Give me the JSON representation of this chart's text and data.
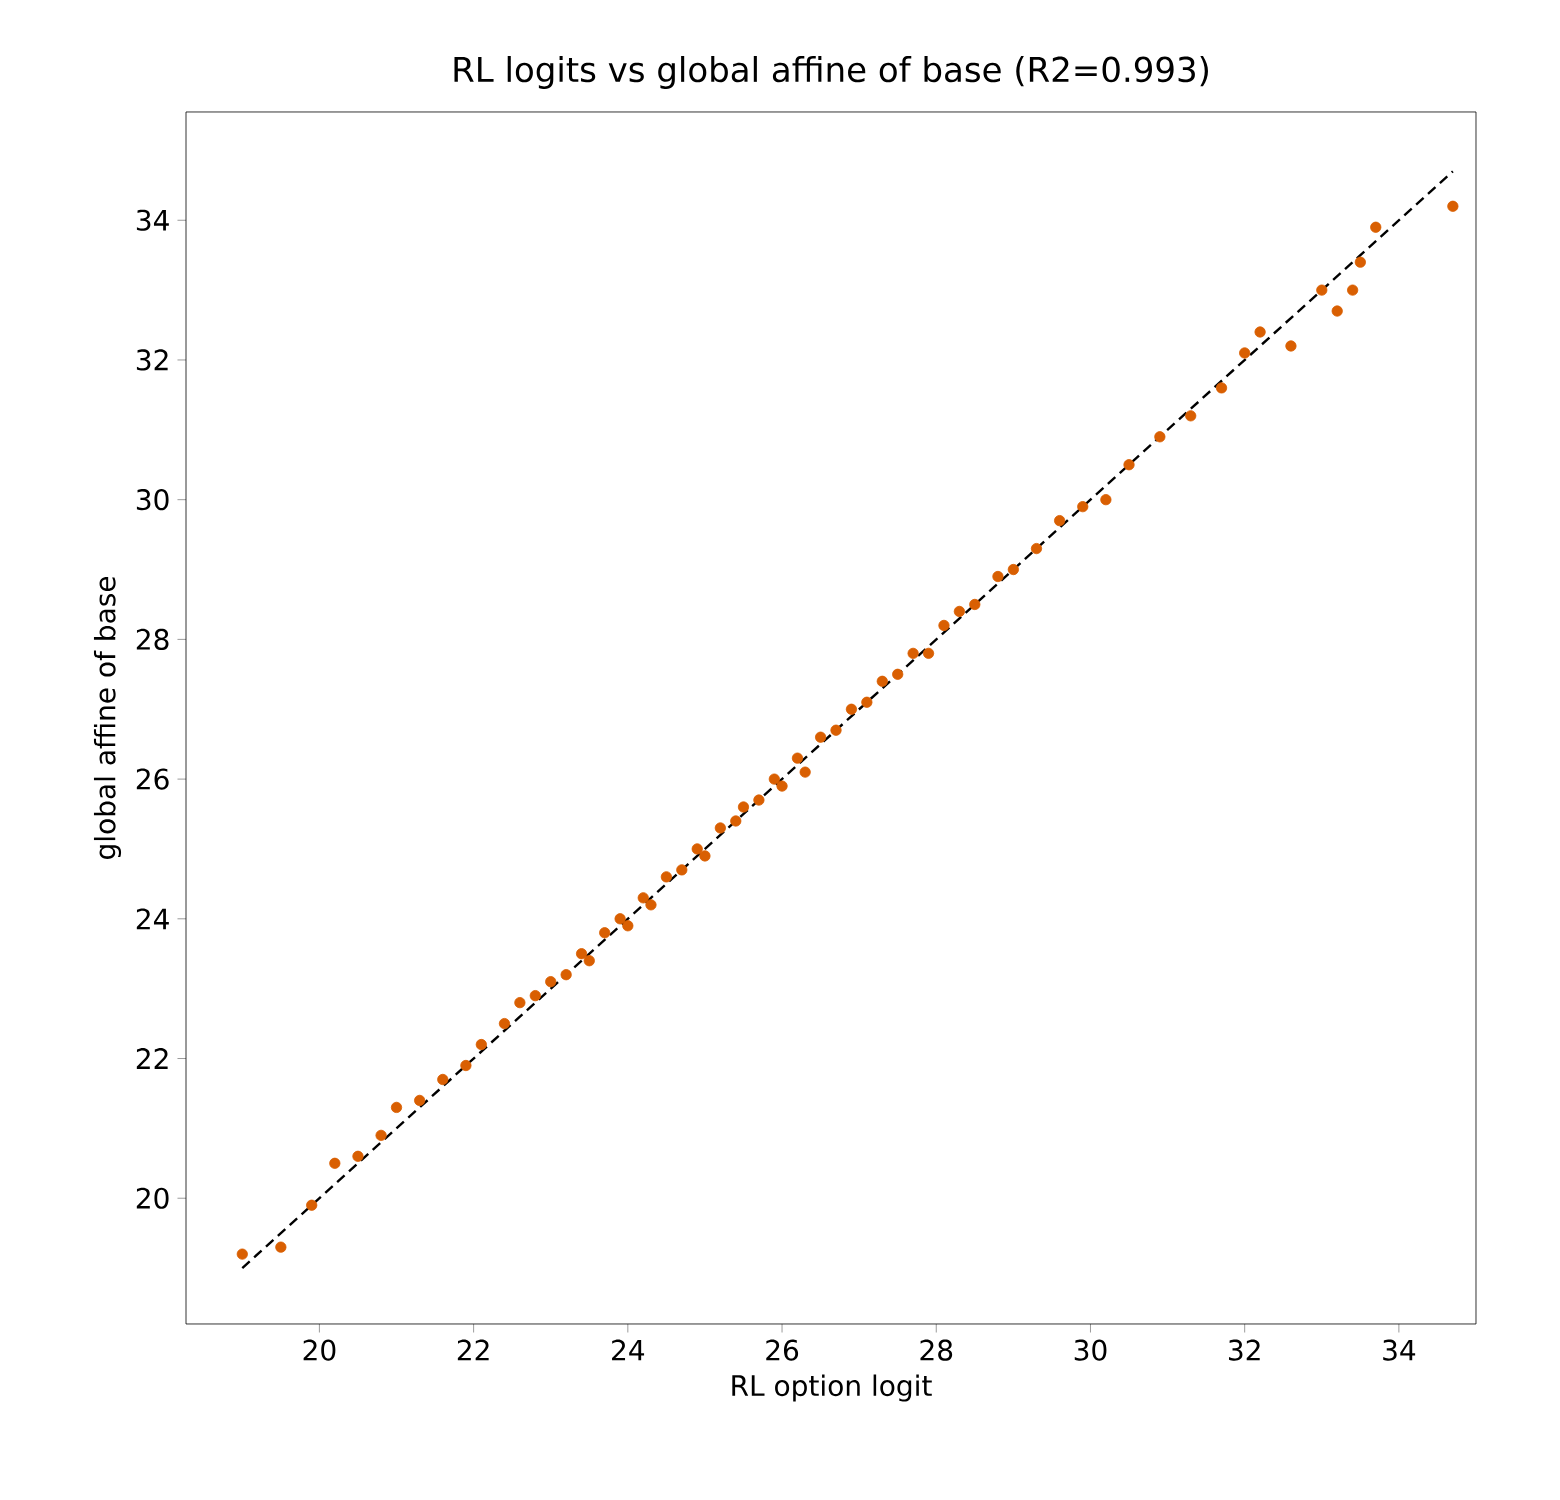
{
  "chart_data": {
    "type": "scatter",
    "title": "RL logits vs global affine of base (R2=0.993)",
    "xlabel": "RL option logit",
    "ylabel": "global affine of base",
    "xlim": [
      18.27,
      35.0
    ],
    "ylim": [
      18.2,
      35.55
    ],
    "xticks": [
      20,
      22,
      24,
      26,
      28,
      30,
      32,
      34
    ],
    "yticks": [
      20,
      22,
      24,
      26,
      28,
      30,
      32,
      34
    ],
    "grid": false,
    "marker": "circle",
    "series": [
      {
        "color": "#d95f02",
        "x": [
          19.0,
          19.5,
          19.9,
          20.2,
          20.5,
          20.8,
          21.0,
          21.3,
          21.6,
          21.9,
          22.1,
          22.4,
          22.6,
          22.8,
          23.0,
          23.2,
          23.4,
          23.5,
          23.7,
          23.9,
          24.0,
          24.2,
          24.3,
          24.5,
          24.7,
          24.9,
          25.0,
          25.2,
          25.4,
          25.5,
          25.7,
          25.9,
          26.0,
          26.2,
          26.3,
          26.5,
          26.7,
          26.9,
          27.1,
          27.3,
          27.5,
          27.7,
          27.9,
          28.1,
          28.3,
          28.5,
          28.8,
          29.0,
          29.3,
          29.6,
          29.9,
          30.2,
          30.5,
          30.9,
          31.3,
          31.7,
          32.0,
          32.2,
          32.6,
          33.0,
          33.2,
          33.4,
          33.5,
          33.7,
          34.7
        ],
        "values": [
          19.2,
          19.3,
          19.9,
          20.5,
          20.6,
          20.9,
          21.3,
          21.4,
          21.7,
          21.9,
          22.2,
          22.5,
          22.8,
          22.9,
          23.1,
          23.2,
          23.5,
          23.4,
          23.8,
          24.0,
          23.9,
          24.3,
          24.2,
          24.6,
          24.7,
          25.0,
          24.9,
          25.3,
          25.4,
          25.6,
          25.7,
          26.0,
          25.9,
          26.3,
          26.1,
          26.6,
          26.7,
          27.0,
          27.1,
          27.4,
          27.5,
          27.8,
          27.8,
          28.2,
          28.4,
          28.5,
          28.9,
          29.0,
          29.3,
          29.7,
          29.9,
          30.0,
          30.5,
          30.9,
          31.2,
          31.6,
          32.1,
          32.4,
          32.2,
          33.0,
          32.7,
          33.0,
          33.4,
          33.9,
          34.2
        ]
      },
      {
        "type": "line",
        "color": "#000000",
        "marker": "none",
        "line_style": "dashed",
        "x": [
          19.0,
          34.7
        ],
        "values": [
          19.0,
          34.7
        ]
      }
    ]
  }
}
